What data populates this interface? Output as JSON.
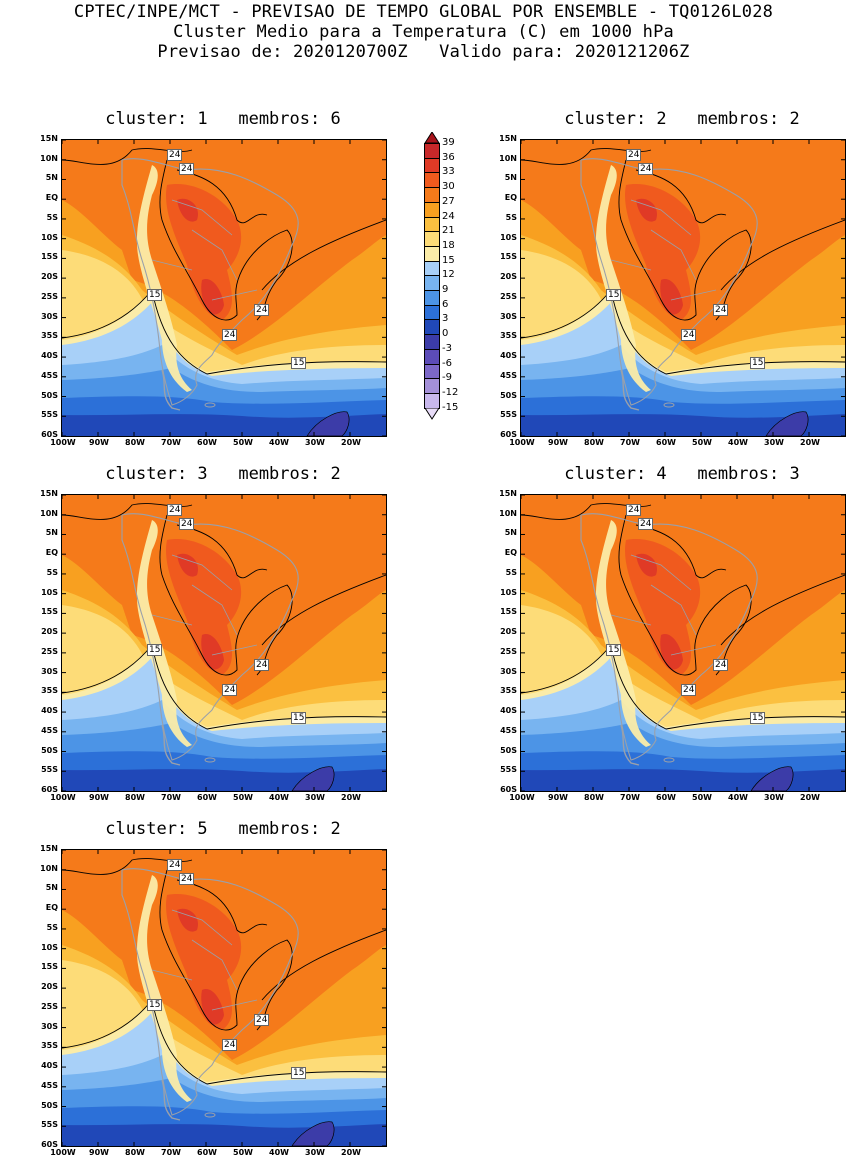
{
  "header": {
    "line1": "CPTEC/INPE/MCT - PREVISAO DE TEMPO GLOBAL POR ENSEMBLE - TQ0126L028",
    "line2": "Cluster Medio para a Temperatura (C) em 1000 hPa",
    "line3": "Previsao de: 2020120700Z   Valido para: 2020121206Z"
  },
  "panels": [
    {
      "title": "cluster: 1   membros: 6"
    },
    {
      "title": "cluster: 2   membros: 2"
    },
    {
      "title": "cluster: 3   membros: 2"
    },
    {
      "title": "cluster: 4   membros: 3"
    },
    {
      "title": "cluster: 5   membros: 2"
    }
  ],
  "axes": {
    "lat_labels": [
      "15N",
      "10N",
      "5N",
      "EQ",
      "5S",
      "10S",
      "15S",
      "20S",
      "25S",
      "30S",
      "35S",
      "40S",
      "45S",
      "50S",
      "55S",
      "60S"
    ],
    "lon_labels": [
      "100W",
      "90W",
      "80W",
      "70W",
      "60W",
      "50W",
      "40W",
      "30W",
      "20W"
    ]
  },
  "contour_labels": {
    "c15": "15",
    "c24": "24"
  },
  "colorbar": {
    "labels": [
      "39",
      "36",
      "33",
      "30",
      "27",
      "24",
      "21",
      "18",
      "15",
      "12",
      "9",
      "6",
      "3",
      "0",
      "-3",
      "-6",
      "-9",
      "-12",
      "-15"
    ],
    "colors": [
      "#a8141c",
      "#c8282a",
      "#e03a26",
      "#f05a1e",
      "#f57a1a",
      "#f8a020",
      "#fbc040",
      "#fddc78",
      "#fbeca8",
      "#a8d0f8",
      "#78b4f0",
      "#4c94e6",
      "#2c70d8",
      "#2048b8",
      "#3c3ca8",
      "#5c4cb8",
      "#7c68c8",
      "#a490d8",
      "#c8b8ec",
      "#e8dcf8"
    ]
  }
}
